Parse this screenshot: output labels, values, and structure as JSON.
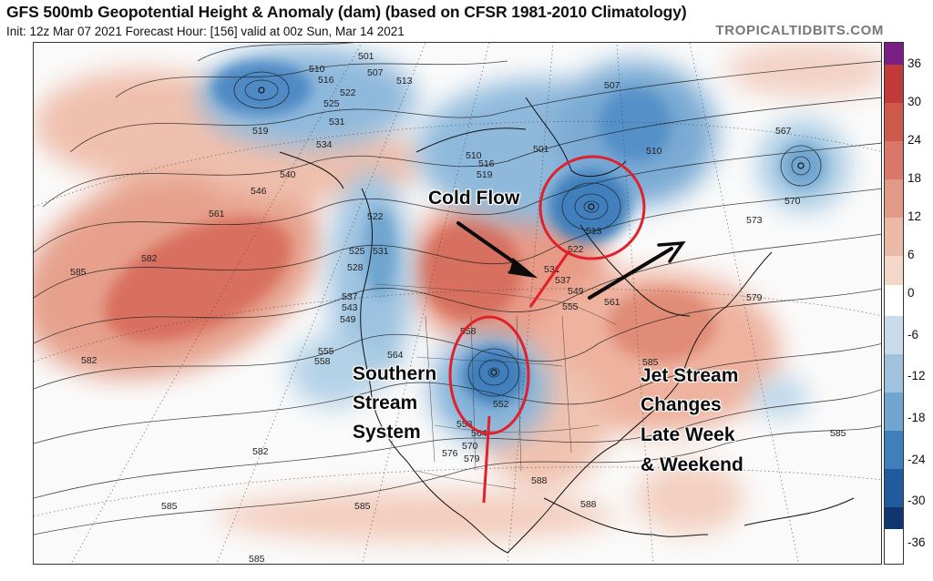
{
  "header": {
    "title": "GFS 500mb Geopotential Height & Anomaly (dam) (based on CFSR 1981-2010 Climatology)",
    "subtitle": "Init: 12z Mar 07 2021   Forecast Hour: [156]   valid at 00z Sun, Mar 14 2021",
    "credit": "TROPICALTIDBITS.COM"
  },
  "colorbar": {
    "labels": [
      "36",
      "30",
      "24",
      "18",
      "12",
      "6",
      "0",
      "-6",
      "-12",
      "-18",
      "-24",
      "-30",
      "-36"
    ],
    "colors": [
      "#7a1f84",
      "#c03a3a",
      "#cd5a4c",
      "#d8776a",
      "#e19a88",
      "#eabaa6",
      "#f3d8ca",
      "#ffffff",
      "#c8dceb",
      "#9fc3de",
      "#6fa5cf",
      "#3f7fbc",
      "#1f5b9e",
      "#11356f"
    ]
  },
  "annotations": {
    "cold_flow": "Cold Flow",
    "southern_stream": [
      "Southern",
      "Stream",
      "System"
    ],
    "jet_stream": [
      "Jet Stream",
      "Changes",
      "Late Week",
      "& Weekend"
    ]
  },
  "contour_labels": [
    "510",
    "501",
    "507",
    "513",
    "516",
    "522",
    "525",
    "531",
    "534",
    "519",
    "540",
    "546",
    "561",
    "582",
    "585",
    "522",
    "525",
    "531",
    "528",
    "537",
    "543",
    "549",
    "555",
    "558",
    "564",
    "558",
    "552",
    "558",
    "564",
    "570",
    "576",
    "579",
    "582",
    "582",
    "585",
    "588",
    "588",
    "585",
    "585",
    "510",
    "519",
    "501",
    "507",
    "510",
    "516",
    "513",
    "522",
    "531",
    "537",
    "549",
    "555",
    "561",
    "573",
    "567",
    "570",
    "579",
    "585",
    "585"
  ],
  "colors": {
    "warm_strong": "#d2614f",
    "warm_mid": "#e3917d",
    "warm_light": "#f1c6b5",
    "cold_light": "#a9cbe3",
    "cold_mid": "#6fa5cf",
    "cold_strong": "#3d7cbb",
    "annotation_red": "#e0202a"
  }
}
